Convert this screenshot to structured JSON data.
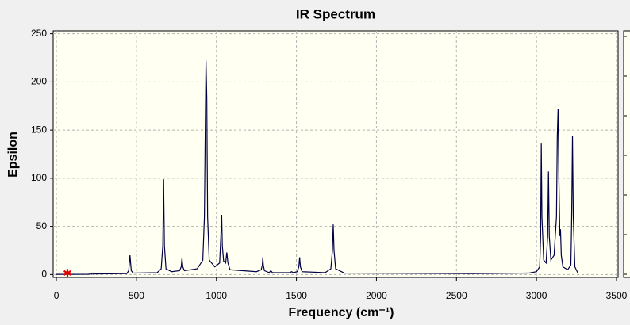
{
  "chart_data": {
    "type": "line",
    "title": "IR Spectrum",
    "x_label": "Frequency (cm⁻¹)",
    "y_label": "Epsilon",
    "xlim": [
      -20,
      3510
    ],
    "ylim": [
      -3,
      253
    ],
    "xticks": [
      0,
      500,
      1000,
      1500,
      2000,
      2500,
      3000,
      3500
    ],
    "yticks": [
      0,
      50,
      100,
      150,
      200,
      250
    ],
    "grid": true,
    "series": [
      {
        "color": "#000044",
        "x": [
          0,
          200,
          220,
          225,
          230,
          440,
          452,
          460,
          468,
          480,
          630,
          655,
          665,
          670,
          675,
          685,
          720,
          770,
          780,
          785,
          790,
          800,
          880,
          915,
          925,
          930,
          935,
          940,
          945,
          955,
          990,
          1020,
          1028,
          1033,
          1037,
          1045,
          1058,
          1065,
          1072,
          1085,
          1250,
          1280,
          1287,
          1290,
          1293,
          1300,
          1330,
          1340,
          1350,
          1460,
          1470,
          1480,
          1505,
          1515,
          1520,
          1525,
          1535,
          1680,
          1715,
          1725,
          1730,
          1735,
          1745,
          1800,
          2600,
          2950,
          3000,
          3020,
          3026,
          3030,
          3034,
          3045,
          3060,
          3070,
          3075,
          3080,
          3090,
          3110,
          3125,
          3130,
          3135,
          3140,
          3146,
          3150,
          3155,
          3165,
          3195,
          3215,
          3220,
          3225,
          3230,
          3240,
          3260
        ],
        "values": [
          0.2,
          0.3,
          0.6,
          1.5,
          0.6,
          1,
          4,
          20,
          4,
          1.5,
          2,
          6,
          30,
          99,
          30,
          6,
          3,
          4,
          8,
          17,
          8,
          4,
          6,
          15,
          60,
          146,
          222,
          183,
          60,
          15,
          8,
          12,
          40,
          62,
          30,
          14,
          12,
          23,
          12,
          5,
          3,
          5,
          10,
          18,
          10,
          4,
          2,
          4,
          2,
          2,
          3,
          2,
          3,
          8,
          18,
          8,
          3,
          2,
          6,
          25,
          52,
          25,
          6,
          1.5,
          1,
          1.5,
          3,
          8,
          40,
          136,
          60,
          15,
          12,
          40,
          107,
          40,
          15,
          20,
          60,
          143,
          172,
          100,
          40,
          47,
          20,
          8,
          5,
          10,
          60,
          144,
          60,
          8,
          1
        ]
      }
    ]
  }
}
